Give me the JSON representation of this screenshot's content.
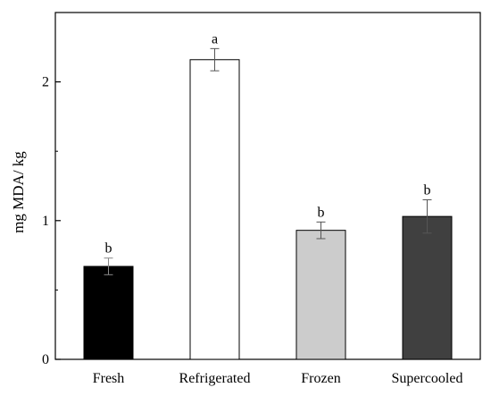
{
  "chart_data": {
    "type": "bar",
    "categories": [
      "Fresh",
      "Refrigerated",
      "Frozen",
      "Supercooled"
    ],
    "values": [
      0.67,
      2.16,
      0.93,
      1.03
    ],
    "error_bars": [
      0.06,
      0.08,
      0.06,
      0.12
    ],
    "significance_labels": [
      "b",
      "a",
      "b",
      "b"
    ],
    "bar_colors": [
      "#000000",
      "#ffffff",
      "#cccccc",
      "#404040"
    ],
    "ylabel": "mg MDA/ kg",
    "xlabel": "",
    "title": "",
    "ylim": [
      0,
      2.5
    ],
    "yticks": [
      0,
      1,
      2
    ],
    "yticklabels": [
      "0",
      "1",
      "2"
    ],
    "grid": false,
    "legend": "none"
  }
}
